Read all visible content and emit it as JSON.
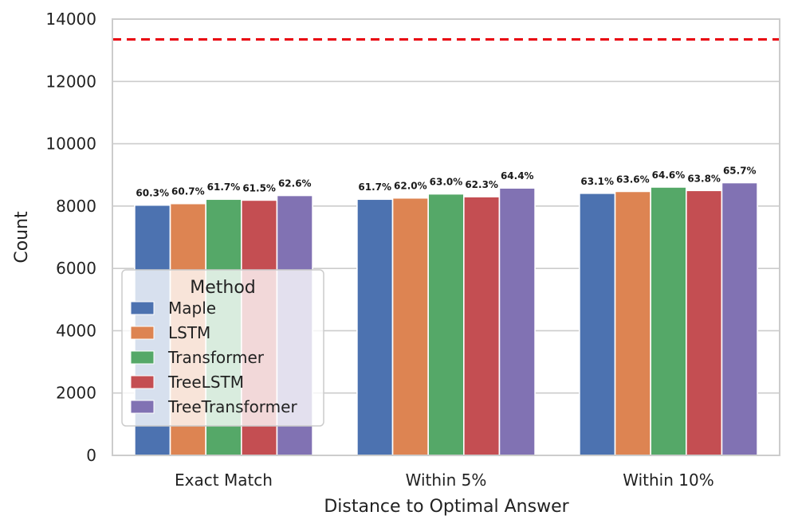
{
  "chart_data": {
    "type": "bar",
    "xlabel": "Distance to Optimal Answer",
    "ylabel": "Count",
    "ylim": [
      0,
      14000
    ],
    "yticks": [
      0,
      2000,
      4000,
      6000,
      8000,
      10000,
      12000,
      14000
    ],
    "grid": "horizontal",
    "categories": [
      "Exact Match",
      "Within 5%",
      "Within 10%"
    ],
    "reference_line": {
      "value": 13350,
      "color": "#e8000b",
      "style": "dashed"
    },
    "legend": {
      "title": "Method",
      "placement": "left-center"
    },
    "series": [
      {
        "name": "Maple",
        "color": "#4c72b0",
        "values": [
          8030,
          8220,
          8410
        ],
        "labels": [
          "60.3%",
          "61.7%",
          "63.1%"
        ]
      },
      {
        "name": "LSTM",
        "color": "#dd8452",
        "values": [
          8080,
          8260,
          8470
        ],
        "labels": [
          "60.7%",
          "62.0%",
          "63.6%"
        ]
      },
      {
        "name": "Transformer",
        "color": "#55a868",
        "values": [
          8220,
          8390,
          8610
        ],
        "labels": [
          "61.7%",
          "63.0%",
          "64.6%"
        ]
      },
      {
        "name": "TreeLSTM",
        "color": "#c44e52",
        "values": [
          8190,
          8300,
          8500
        ],
        "labels": [
          "61.5%",
          "62.3%",
          "63.8%"
        ]
      },
      {
        "name": "TreeTransformer",
        "color": "#8172b3",
        "values": [
          8340,
          8580,
          8750
        ],
        "labels": [
          "62.6%",
          "64.4%",
          "65.7%"
        ]
      }
    ]
  }
}
